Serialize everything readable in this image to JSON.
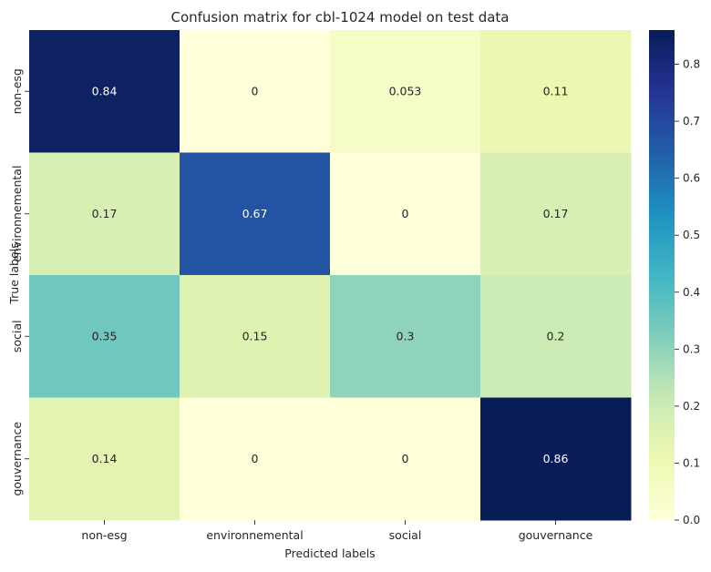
{
  "chart_data": {
    "type": "heatmap",
    "title": "Confusion matrix for cbl-1024 model on test data",
    "xlabel": "Predicted labels",
    "ylabel": "True labels",
    "x_categories": [
      "non-esg",
      "environnemental",
      "social",
      "gouvernance"
    ],
    "y_categories": [
      "non-esg",
      "environnemental",
      "social",
      "gouvernance"
    ],
    "values": [
      [
        0.84,
        0,
        0.053,
        0.11
      ],
      [
        0.17,
        0.67,
        0,
        0.17
      ],
      [
        0.35,
        0.15,
        0.3,
        0.2
      ],
      [
        0.14,
        0,
        0,
        0.86
      ]
    ],
    "value_labels": [
      [
        "0.84",
        "0",
        "0.053",
        "0.11"
      ],
      [
        "0.17",
        "0.67",
        "0",
        "0.17"
      ],
      [
        "0.35",
        "0.15",
        "0.3",
        "0.2"
      ],
      [
        "0.14",
        "0",
        "0",
        "0.86"
      ]
    ],
    "colormap": "YlGnBu",
    "colorbar": {
      "min": 0,
      "max": 0.86,
      "ticks": [
        0.0,
        0.1,
        0.2,
        0.3,
        0.4,
        0.5,
        0.6,
        0.7,
        0.8
      ],
      "tick_labels": [
        "0.0",
        "0.1",
        "0.2",
        "0.3",
        "0.4",
        "0.5",
        "0.6",
        "0.7",
        "0.8"
      ]
    },
    "grid": false,
    "colors": {
      "text_dark": "#262626",
      "text_light": "#ffffff"
    }
  }
}
